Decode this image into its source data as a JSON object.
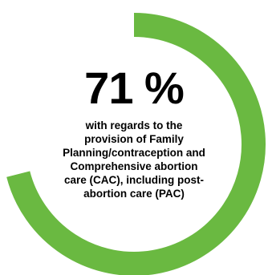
{
  "chart_data": {
    "type": "pie",
    "style": "donut",
    "values": [
      71,
      29
    ],
    "unit": "%",
    "colors": [
      "#6ab941",
      "#ffffff"
    ]
  },
  "center_value_text": "71 %",
  "caption_lines": [
    "with regards to the",
    "provision of Family",
    "Planning/contraception and",
    "Comprehensive abortion",
    "care (CAC), including post-",
    "abortion care (PAC)"
  ]
}
